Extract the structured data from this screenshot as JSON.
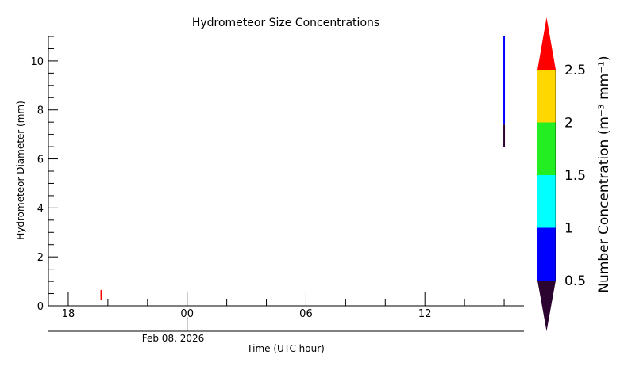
{
  "chart_data": {
    "type": "heatmap",
    "title": "Hydrometeor Size Concentrations",
    "xlabel": "Time (UTC hour)",
    "ylabel": "Hydrometeor Diameter (mm)",
    "date_label": "Feb 08, 2026",
    "x_start": "2026-02-07 17:00",
    "x_end": "2026-02-08 17:00",
    "x_ticks": [
      {
        "time": "2026-02-07 18:00",
        "label": "18"
      },
      {
        "time": "2026-02-08 00:00",
        "label": "00"
      },
      {
        "time": "2026-02-08 06:00",
        "label": "06"
      },
      {
        "time": "2026-02-08 12:00",
        "label": "12"
      }
    ],
    "x_minor_ticks": [
      "2026-02-07 20:00",
      "2026-02-07 22:00",
      "2026-02-08 02:00",
      "2026-02-08 04:00",
      "2026-02-08 08:00",
      "2026-02-08 10:00",
      "2026-02-08 14:00",
      "2026-02-08 16:00"
    ],
    "ylim": [
      0,
      11
    ],
    "y_ticks": [
      0,
      2,
      4,
      6,
      8,
      10
    ],
    "colorbar": {
      "label": "Number Concentration (m⁻³ mm⁻¹)",
      "ticks": [
        "0.5",
        "1",
        "1.5",
        "2",
        "2.5"
      ],
      "bins": [
        {
          "range": "below 0.5",
          "color": "#2b0530"
        },
        {
          "range": "0.5–1",
          "color": "#0000ff"
        },
        {
          "range": "1–1.5",
          "color": "#00ffff"
        },
        {
          "range": "1.5–2",
          "color": "#22ee22"
        },
        {
          "range": "2–2.5",
          "color": "#ffd700"
        },
        {
          "range": "above 2.5",
          "color": "#ff0000"
        }
      ]
    },
    "observations": [
      {
        "time": "2026-02-07 19:40",
        "d_min": 0.25,
        "d_max": 0.65,
        "color": "#ff0000"
      },
      {
        "time": "2026-02-08 16:00",
        "d_min": 6.5,
        "d_max": 7.4,
        "color": "#2b0530"
      },
      {
        "time": "2026-02-08 16:00",
        "d_min": 7.4,
        "d_max": 11.0,
        "color": "#0000ff"
      }
    ]
  }
}
